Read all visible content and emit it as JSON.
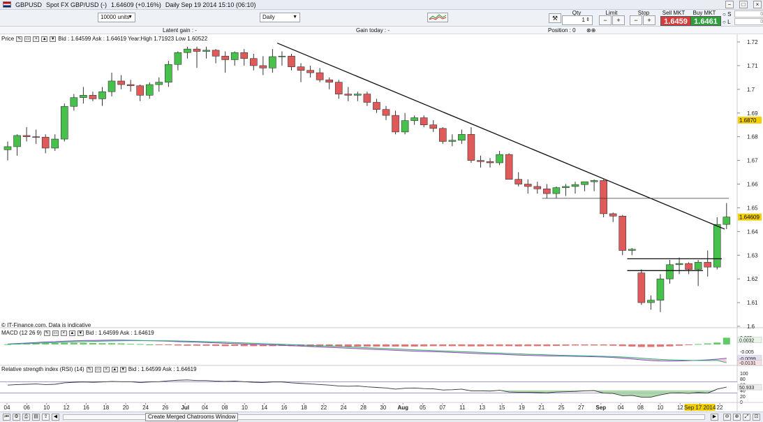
{
  "window": {
    "title": "GBPUSD",
    "subtitle": "Spot FX GBP/USD (-)",
    "price": "1.64609 (+0.16%)",
    "info": "Daily  Sep 19 2014 15:10 (06:10)",
    "controls": [
      "−",
      "□",
      "×"
    ]
  },
  "toolbar": {
    "units": "10000 units",
    "period": "Daily",
    "qty_label": "Qty",
    "qty_value": "1",
    "limit_label": "Limit",
    "stop_label": "Stop",
    "sell_label": "Sell MKT",
    "buy_label": "Buy MKT",
    "sell_price": "1.6459",
    "buy_price": "1.6461",
    "s_label": "S",
    "l_label": "L",
    "s_value": "0.0",
    "l_value": "0.0"
  },
  "gainbar": {
    "latent": "Latent gain : -",
    "today": "Gain today : -",
    "position": "Position : 0"
  },
  "price_panel": {
    "title": "Price",
    "info": "Bid : 1.64599 Ask : 1.64619 Year:High 1.71923 Low 1.60522",
    "source": "© IT-Finance.com. Data is indicative",
    "last_badge": "1.64609",
    "level_badge": "1.6870"
  },
  "macd_panel": {
    "title": "MACD (12 26 9)",
    "info": "Bid : 1.64599 Ask : 1.64619",
    "scale": [
      "0.005",
      "-0.005"
    ],
    "badges": [
      "0.0032",
      "-0.0099",
      "-0.0131"
    ]
  },
  "rsi_panel": {
    "title": "Relative strength index (RSI) (14)",
    "info": "Bid : 1.64599 Ask : 1.64619",
    "scale": [
      "100",
      "80",
      "60",
      "40",
      "20",
      "0"
    ],
    "badge": "50.933"
  },
  "x_axis": {
    "labels": [
      "04",
      "06",
      "10",
      "12",
      "16",
      "18",
      "20",
      "24",
      "26",
      "Jul",
      "04",
      "08",
      "10",
      "14",
      "16",
      "18",
      "22",
      "24",
      "28",
      "30",
      "Aug",
      "05",
      "07",
      "11",
      "13",
      "15",
      "19",
      "21",
      "25",
      "27",
      "Sep",
      "04",
      "08",
      "10",
      "12",
      "Sep 17 2014",
      "22"
    ]
  },
  "status": {
    "chatroom": "Create Merged Chatrooms Window"
  },
  "colors": {
    "up": "#46c24c",
    "down": "#e05a5a",
    "macd_hist_up": "#46c24c",
    "macd_hist_down": "#e05a5a"
  },
  "chart_data": {
    "type": "candlestick",
    "title": "GBPUSD",
    "xlabel": "",
    "ylabel": "",
    "ylim": [
      1.6,
      1.72
    ],
    "y_ticks": [
      "1.72",
      "1.71",
      "1.7",
      "1.69",
      "1.68",
      "1.67",
      "1.66",
      "1.65",
      "1.64",
      "1.63",
      "1.62",
      "1.61",
      "1.6"
    ],
    "candles": [
      [
        1.6745,
        1.678,
        1.67,
        1.6758
      ],
      [
        1.6758,
        1.681,
        1.672,
        1.6805
      ],
      [
        1.6805,
        1.684,
        1.678,
        1.68
      ],
      [
        1.68,
        1.683,
        1.677,
        1.6798
      ],
      [
        1.6798,
        1.681,
        1.673,
        1.6752
      ],
      [
        1.6752,
        1.681,
        1.674,
        1.679
      ],
      [
        1.679,
        1.694,
        1.678,
        1.6928
      ],
      [
        1.6928,
        1.698,
        1.691,
        1.6965
      ],
      [
        1.6965,
        1.701,
        1.694,
        1.6975
      ],
      [
        1.6975,
        1.699,
        1.695,
        1.696
      ],
      [
        1.696,
        1.701,
        1.693,
        1.699
      ],
      [
        1.699,
        1.707,
        1.697,
        1.7035
      ],
      [
        1.7035,
        1.706,
        1.7,
        1.702
      ],
      [
        1.702,
        1.704,
        1.699,
        1.7015
      ],
      [
        1.7015,
        1.702,
        1.695,
        1.6975
      ],
      [
        1.6975,
        1.703,
        1.696,
        1.702
      ],
      [
        1.702,
        1.705,
        1.699,
        1.703
      ],
      [
        1.703,
        1.712,
        1.701,
        1.7105
      ],
      [
        1.7105,
        1.716,
        1.708,
        1.7155
      ],
      [
        1.7155,
        1.718,
        1.713,
        1.717
      ],
      [
        1.717,
        1.718,
        1.709,
        1.716
      ],
      [
        1.716,
        1.718,
        1.713,
        1.7165
      ],
      [
        1.7165,
        1.717,
        1.711,
        1.714
      ],
      [
        1.714,
        1.716,
        1.707,
        1.7125
      ],
      [
        1.7125,
        1.716,
        1.71,
        1.7155
      ],
      [
        1.7155,
        1.717,
        1.71,
        1.713
      ],
      [
        1.713,
        1.715,
        1.708,
        1.71
      ],
      [
        1.71,
        1.714,
        1.706,
        1.709
      ],
      [
        1.709,
        1.717,
        1.707,
        1.7138
      ],
      [
        1.7138,
        1.716,
        1.71,
        1.714
      ],
      [
        1.714,
        1.715,
        1.708,
        1.7095
      ],
      [
        1.7095,
        1.711,
        1.703,
        1.708
      ],
      [
        1.708,
        1.71,
        1.705,
        1.707
      ],
      [
        1.707,
        1.709,
        1.703,
        1.704
      ],
      [
        1.704,
        1.705,
        1.7,
        1.703
      ],
      [
        1.703,
        1.704,
        1.696,
        1.698
      ],
      [
        1.698,
        1.701,
        1.695,
        1.6975
      ],
      [
        1.6975,
        1.699,
        1.695,
        1.698
      ],
      [
        1.698,
        1.699,
        1.693,
        1.6945
      ],
      [
        1.6945,
        1.696,
        1.69,
        1.6915
      ],
      [
        1.6915,
        1.693,
        1.687,
        1.689
      ],
      [
        1.689,
        1.691,
        1.681,
        1.682
      ],
      [
        1.682,
        1.69,
        1.681,
        1.6868
      ],
      [
        1.6868,
        1.689,
        1.685,
        1.688
      ],
      [
        1.688,
        1.689,
        1.684,
        1.685
      ],
      [
        1.685,
        1.687,
        1.682,
        1.6835
      ],
      [
        1.6835,
        1.684,
        1.677,
        1.678
      ],
      [
        1.678,
        1.681,
        1.676,
        1.6785
      ],
      [
        1.6785,
        1.683,
        1.677,
        1.681
      ],
      [
        1.681,
        1.684,
        1.669,
        1.67
      ],
      [
        1.67,
        1.672,
        1.667,
        1.6695
      ],
      [
        1.6695,
        1.671,
        1.667,
        1.669
      ],
      [
        1.669,
        1.674,
        1.668,
        1.6725
      ],
      [
        1.6725,
        1.673,
        1.662,
        1.662
      ],
      [
        1.662,
        1.665,
        1.659,
        1.66
      ],
      [
        1.66,
        1.662,
        1.656,
        1.659
      ],
      [
        1.659,
        1.661,
        1.656,
        1.658
      ],
      [
        1.658,
        1.66,
        1.654,
        1.656
      ],
      [
        1.656,
        1.659,
        1.654,
        1.6585
      ],
      [
        1.6585,
        1.66,
        1.655,
        1.659
      ],
      [
        1.659,
        1.661,
        1.656,
        1.6598
      ],
      [
        1.6598,
        1.661,
        1.657,
        1.661
      ],
      [
        1.661,
        1.662,
        1.657,
        1.6615
      ],
      [
        1.6615,
        1.662,
        1.646,
        1.6475
      ],
      [
        1.6475,
        1.648,
        1.644,
        1.6465
      ],
      [
        1.6465,
        1.647,
        1.63,
        1.632
      ],
      [
        1.632,
        1.633,
        1.63,
        1.6325
      ],
      [
        1.6225,
        1.624,
        1.609,
        1.61
      ],
      [
        1.61,
        1.613,
        1.607,
        1.611
      ],
      [
        1.611,
        1.622,
        1.606,
        1.62
      ],
      [
        1.62,
        1.628,
        1.618,
        1.626
      ],
      [
        1.626,
        1.629,
        1.622,
        1.6265
      ],
      [
        1.6265,
        1.627,
        1.622,
        1.624
      ],
      [
        1.624,
        1.628,
        1.617,
        1.627
      ],
      [
        1.627,
        1.632,
        1.621,
        1.625
      ],
      [
        1.625,
        1.646,
        1.624,
        1.643
      ],
      [
        1.643,
        1.652,
        1.641,
        1.6461
      ]
    ],
    "trendline": [
      [
        1.7195,
        0.0
      ],
      [
        1.641,
        1.0
      ]
    ],
    "support_lines": [
      1.654,
      1.6285,
      1.6235
    ],
    "macd": {
      "line": [
        0.0003,
        0.0007,
        0.001,
        0.0014,
        0.0018,
        0.002,
        0.0024,
        0.0026,
        0.0028,
        0.0029,
        0.003,
        0.0031,
        0.0031,
        0.003,
        0.0029,
        0.0027,
        0.0025,
        0.0023,
        0.002,
        0.0018,
        0.0016,
        0.0014,
        0.0011,
        0.0008,
        0.0006,
        0.0003,
        0.0001,
        -0.0002,
        -0.0004,
        -0.0006,
        -0.0009,
        -0.0012,
        -0.0015,
        -0.0018,
        -0.0021,
        -0.0024,
        -0.0027,
        -0.003,
        -0.0033,
        -0.0036,
        -0.0039,
        -0.0042,
        -0.0045,
        -0.0048,
        -0.005,
        -0.0052,
        -0.0054,
        -0.0057,
        -0.006,
        -0.0063,
        -0.0066,
        -0.0068,
        -0.007,
        -0.0073,
        -0.0076,
        -0.0078,
        -0.008,
        -0.0082,
        -0.0083,
        -0.0084,
        -0.0085,
        -0.0086,
        -0.0088,
        -0.009,
        -0.0093,
        -0.0098,
        -0.0104,
        -0.011,
        -0.0115,
        -0.0118,
        -0.0119,
        -0.0118,
        -0.0116,
        -0.0113,
        -0.011,
        -0.0105,
        -0.0099
      ],
      "signal": [
        0.0002,
        0.0004,
        0.0006,
        0.0008,
        0.0011,
        0.0013,
        0.0016,
        0.0018,
        0.002,
        0.0022,
        0.0024,
        0.0025,
        0.0026,
        0.0027,
        0.0027,
        0.0027,
        0.0027,
        0.0026,
        0.0025,
        0.0024,
        0.0022,
        0.002,
        0.0018,
        0.0016,
        0.0013,
        0.0011,
        0.0009,
        0.0006,
        0.0004,
        0.0001,
        -0.0001,
        -0.0004,
        -0.0006,
        -0.0009,
        -0.0012,
        -0.0014,
        -0.0017,
        -0.002,
        -0.0023,
        -0.0026,
        -0.0029,
        -0.0032,
        -0.0035,
        -0.0038,
        -0.0041,
        -0.0044,
        -0.0046,
        -0.0049,
        -0.0052,
        -0.0054,
        -0.0057,
        -0.006,
        -0.0062,
        -0.0065,
        -0.0067,
        -0.007,
        -0.0072,
        -0.0074,
        -0.0076,
        -0.0078,
        -0.008,
        -0.0081,
        -0.0083,
        -0.0085,
        -0.0087,
        -0.009,
        -0.0094,
        -0.0098,
        -0.0103,
        -0.0107,
        -0.011,
        -0.0112,
        -0.0114,
        -0.0115,
        -0.0115,
        -0.0114,
        -0.0131
      ],
      "ylim": [
        -0.014,
        0.006
      ]
    },
    "rsi": {
      "values": [
        58,
        60,
        61,
        62,
        60,
        61,
        66,
        68,
        69,
        68,
        69,
        71,
        70,
        70,
        67,
        69,
        70,
        73,
        75,
        76,
        74,
        74,
        72,
        71,
        72,
        70,
        68,
        67,
        69,
        69,
        66,
        64,
        62,
        60,
        58,
        55,
        54,
        55,
        52,
        50,
        48,
        44,
        47,
        48,
        46,
        45,
        41,
        42,
        44,
        38,
        38,
        37,
        40,
        34,
        33,
        33,
        32,
        31,
        34,
        35,
        36,
        38,
        39,
        30,
        29,
        21,
        22,
        16,
        16,
        24,
        30,
        31,
        29,
        32,
        30,
        44,
        51
      ],
      "ylim": [
        0,
        100
      ],
      "levels": [
        70,
        30
      ]
    }
  }
}
